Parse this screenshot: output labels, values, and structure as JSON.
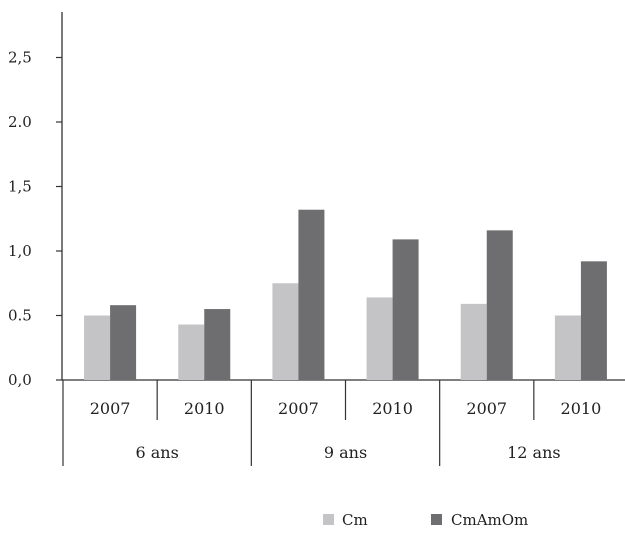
{
  "chart_data": {
    "type": "bar",
    "groups": [
      {
        "label": "6 ans",
        "categories": [
          "2007",
          "2010"
        ]
      },
      {
        "label": "9 ans",
        "categories": [
          "2007",
          "2010"
        ]
      },
      {
        "label": "12 ans",
        "categories": [
          "2007",
          "2010"
        ]
      }
    ],
    "series": [
      {
        "name": "Cm",
        "color": "#c4c4c6",
        "values": [
          0.5,
          0.43,
          0.75,
          0.64,
          0.59,
          0.5
        ]
      },
      {
        "name": "CmAmOm",
        "color": "#6e6e70",
        "values": [
          0.58,
          0.55,
          1.32,
          1.09,
          1.16,
          0.92
        ]
      }
    ],
    "ylim": [
      0,
      2.8
    ],
    "y_ticks": [
      "0,0",
      "0.5",
      "1,0",
      "1,5",
      "2.0",
      "2,5"
    ],
    "y_tick_values": [
      0,
      0.5,
      1.0,
      1.5,
      2.0,
      2.5
    ],
    "legend_position": "bottom-center",
    "grid": false
  }
}
